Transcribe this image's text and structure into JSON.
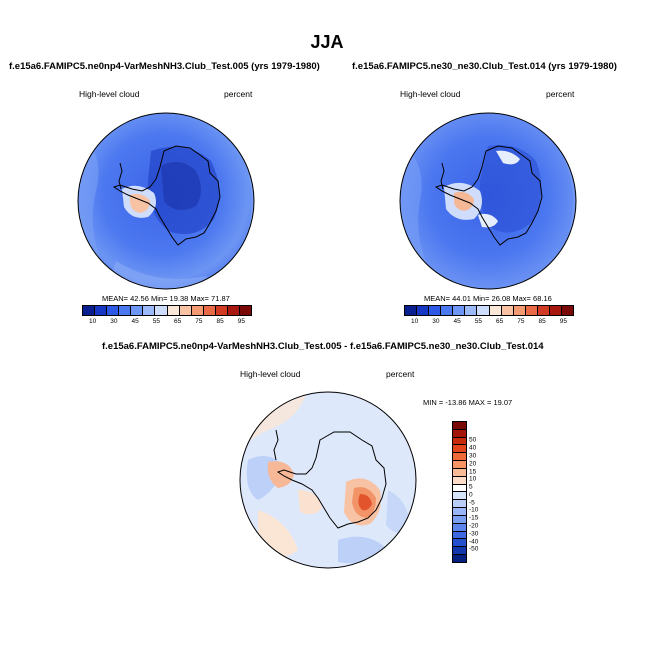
{
  "title": "JJA",
  "panels": [
    {
      "title": "f.e15a6.FAMIPC5.ne0np4-VarMeshNH3.Club_Test.005 (yrs 1979-1980)",
      "left_label": "High-level cloud",
      "right_label": "percent",
      "stats": "MEAN= 42.56 Min= 19.38 Max= 71.87"
    },
    {
      "title": "f.e15a6.FAMIPC5.ne30_ne30.Club_Test.014 (yrs 1979-1980)",
      "left_label": "High-level cloud",
      "right_label": "percent",
      "stats": "MEAN= 44.01 Min= 26.08 Max= 68.16"
    },
    {
      "title": "f.e15a6.FAMIPC5.ne0np4-VarMeshNH3.Club_Test.005 - f.e15a6.FAMIPC5.ne30_ne30.Club_Test.014",
      "left_label": "High-level cloud",
      "right_label": "percent",
      "stats": "MIN = -13.86 MAX = 19.07"
    }
  ],
  "colorbar_abs": {
    "colors": [
      "#0a1f8f",
      "#1537c4",
      "#2e58e6",
      "#4a78f0",
      "#6e96f5",
      "#9cb9f9",
      "#cddcfb",
      "#fbe7d8",
      "#f8c2a3",
      "#f39a73",
      "#e86a47",
      "#d13a23",
      "#a9180f",
      "#7a0a08"
    ],
    "tick_labels": [
      "10",
      "30",
      "45",
      "55",
      "65",
      "75",
      "85",
      "95"
    ]
  },
  "colorbar_diff": {
    "colors": [
      "#7a0a08",
      "#a31508",
      "#c82a0c",
      "#e2461c",
      "#f06b3a",
      "#f59566",
      "#f8bb98",
      "#fbdcc8",
      "#ffffff",
      "#d7e5fb",
      "#b8cef8",
      "#98b6f5",
      "#7a9ef0",
      "#5c84ea",
      "#3f69e2",
      "#2450cf",
      "#1237ad",
      "#06207f"
    ],
    "tick_labels": [
      "50",
      "40",
      "30",
      "20",
      "15",
      "10",
      "5",
      "0",
      "-5",
      "-10",
      "-15",
      "-20",
      "-30",
      "-40",
      "-50"
    ]
  },
  "chart_data": [
    {
      "type": "heatmap",
      "title": "f.e15a6.FAMIPC5.ne0np4-VarMeshNH3.Club_Test.005 (yrs 1979-1980)",
      "variable": "High-level cloud",
      "units": "percent",
      "projection": "south polar stereographic",
      "stats": {
        "mean": 42.56,
        "min": 19.38,
        "max": 71.87
      },
      "contour_levels": [
        10,
        20,
        25,
        30,
        35,
        40,
        45,
        50,
        55,
        60,
        65,
        70,
        75,
        80,
        85,
        90,
        95
      ]
    },
    {
      "type": "heatmap",
      "title": "f.e15a6.FAMIPC5.ne30_ne30.Club_Test.014 (yrs 1979-1980)",
      "variable": "High-level cloud",
      "units": "percent",
      "projection": "south polar stereographic",
      "stats": {
        "mean": 44.01,
        "min": 26.08,
        "max": 68.16
      },
      "contour_levels": [
        10,
        20,
        25,
        30,
        35,
        40,
        45,
        50,
        55,
        60,
        65,
        70,
        75,
        80,
        85,
        90,
        95
      ]
    },
    {
      "type": "heatmap",
      "title": "f.e15a6.FAMIPC5.ne0np4-VarMeshNH3.Club_Test.005 - f.e15a6.FAMIPC5.ne30_ne30.Club_Test.014",
      "variable": "High-level cloud",
      "units": "percent",
      "projection": "south polar stereographic",
      "stats": {
        "min": -13.86,
        "max": 19.07
      },
      "contour_levels": [
        -50,
        -40,
        -30,
        -20,
        -15,
        -10,
        -5,
        0,
        5,
        10,
        15,
        20,
        30,
        40,
        50
      ]
    }
  ]
}
